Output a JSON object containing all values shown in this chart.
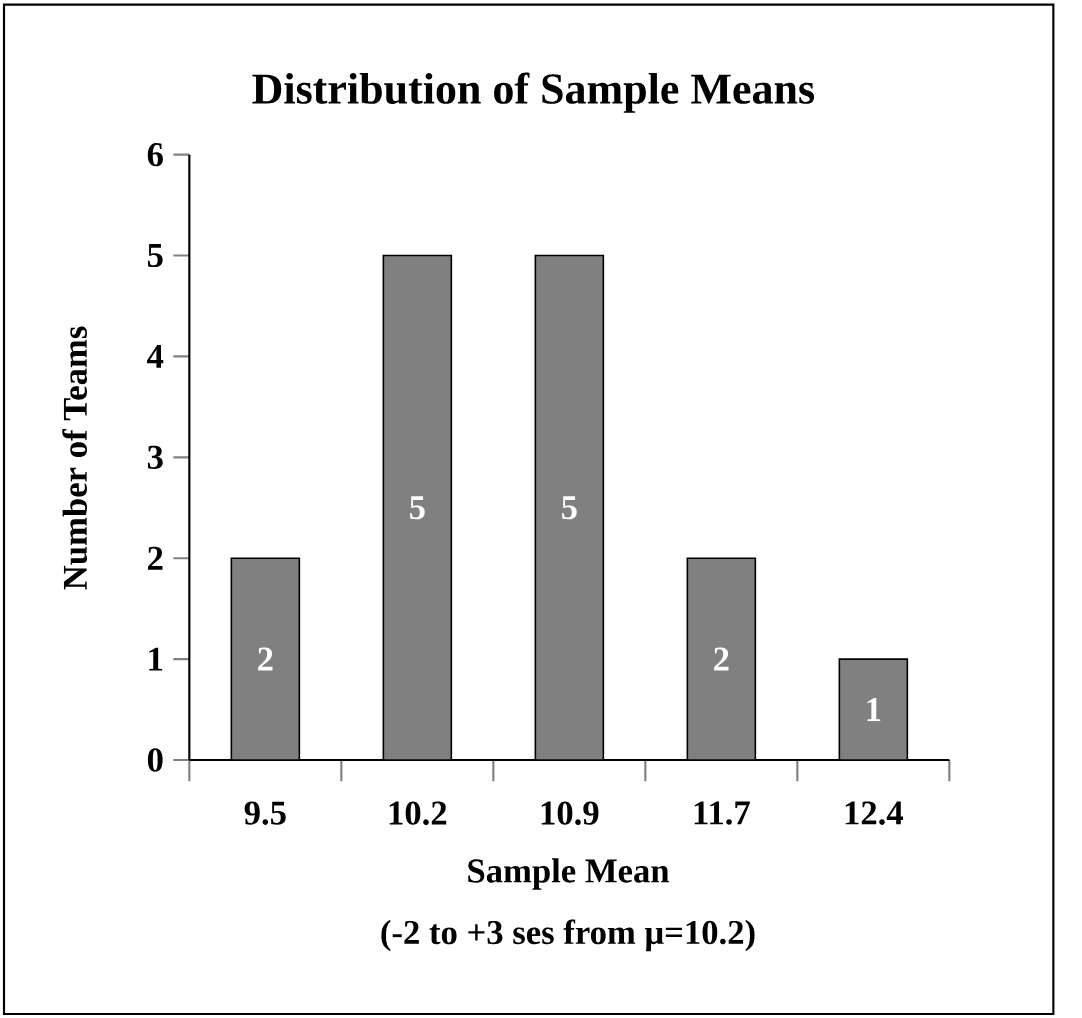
{
  "chart_data": {
    "type": "bar",
    "title": "Distribution of Sample Means",
    "xlabel": "Sample Mean",
    "ylabel": "Number of Teams",
    "annotations": [
      "(-2 to +3 ses from μ=10.2)"
    ],
    "categories": [
      "9.5",
      "10.2",
      "10.9",
      "11.7",
      "12.4"
    ],
    "values": [
      2,
      5,
      5,
      2,
      1
    ],
    "color": "#808080",
    "ylim": [
      0,
      6
    ],
    "yticks": [
      0,
      1,
      2,
      3,
      4,
      5,
      6
    ],
    "data_labels": true
  }
}
